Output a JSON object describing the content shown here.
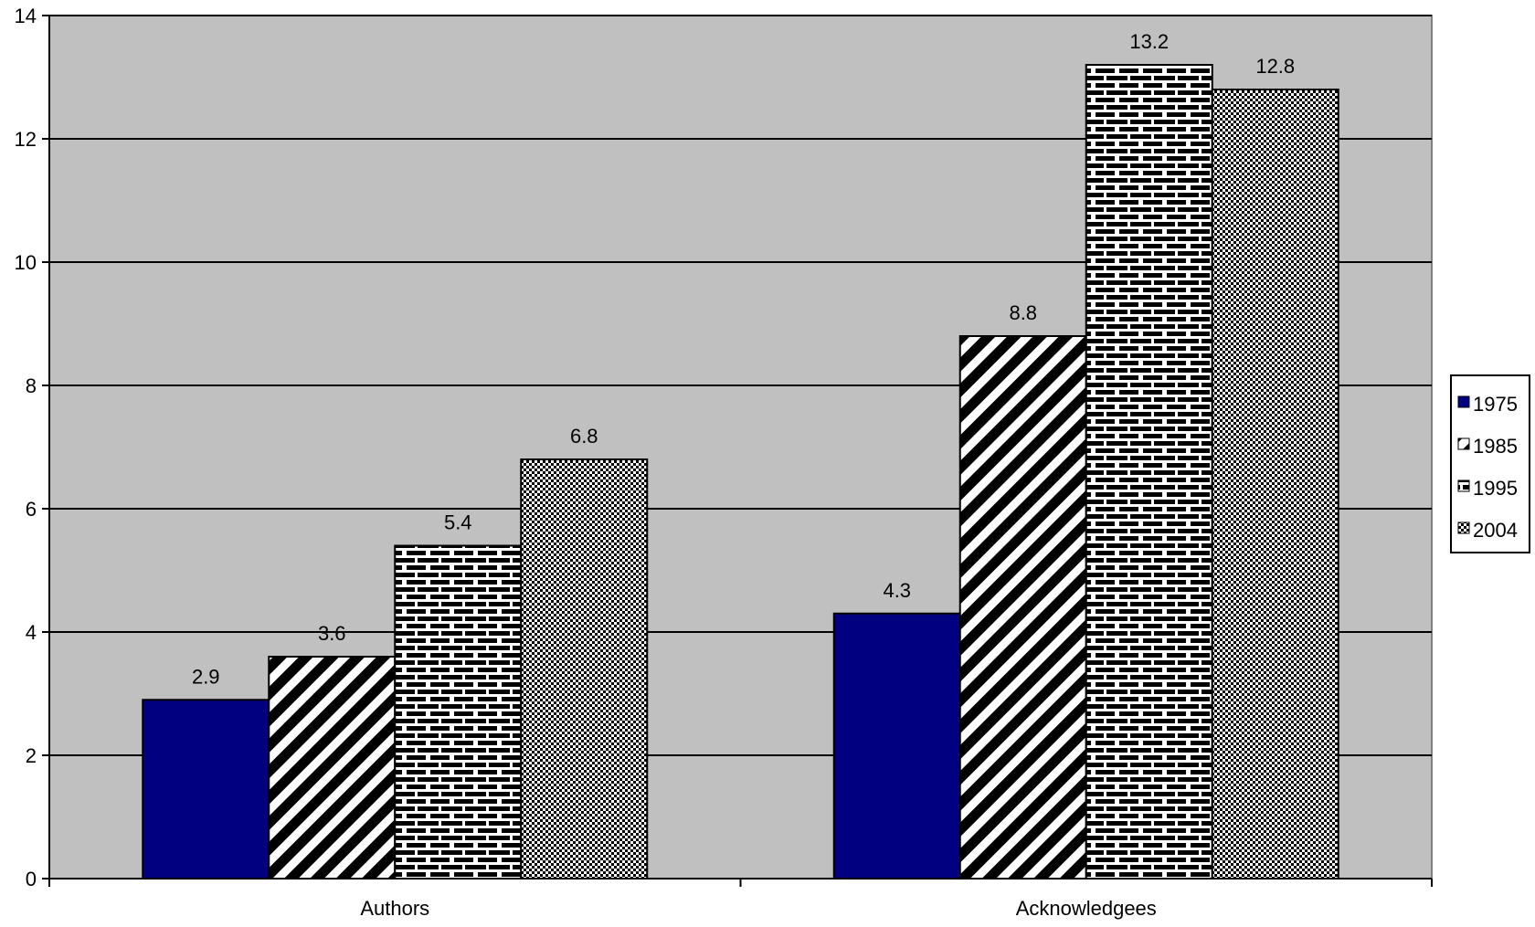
{
  "chart_data": {
    "type": "bar",
    "title": "",
    "xlabel": "",
    "ylabel": "",
    "categories": [
      "Authors",
      "Acknowledgees"
    ],
    "series": [
      {
        "name": "1975",
        "values": [
          2.9,
          4.3
        ],
        "pattern": "solid",
        "color": "#000080"
      },
      {
        "name": "1985",
        "values": [
          3.6,
          8.8
        ],
        "pattern": "diagonal-stripes",
        "color": "#000000"
      },
      {
        "name": "1995",
        "values": [
          5.4,
          13.2
        ],
        "pattern": "bricks",
        "color": "#000000"
      },
      {
        "name": "2004",
        "values": [
          6.8,
          12.8
        ],
        "pattern": "checkered",
        "color": "#000000"
      }
    ],
    "ylim": [
      0,
      14
    ],
    "yticks": [
      0,
      2,
      4,
      6,
      8,
      10,
      12,
      14
    ],
    "grid": true,
    "plot_background": "#c0c0c0",
    "legend_position": "right",
    "data_labels": true
  }
}
